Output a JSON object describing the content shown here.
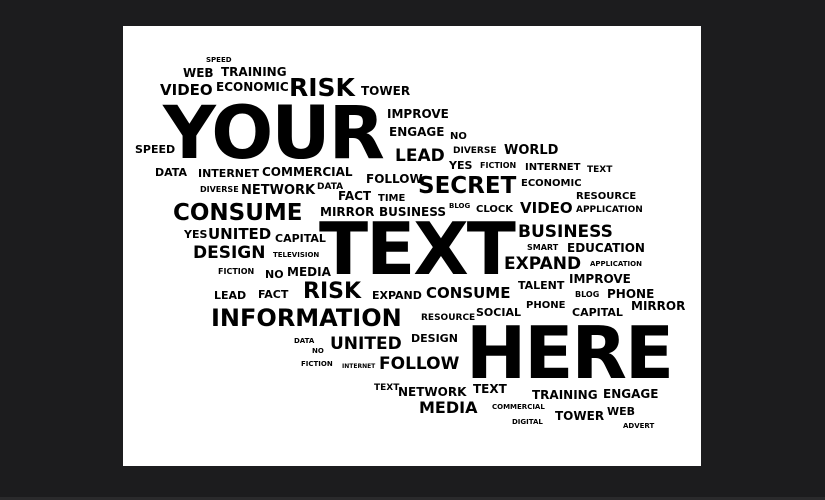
{
  "colors": {
    "background": "#1c1c1e",
    "canvas": "#ffffff",
    "text": "#000000"
  },
  "words": [
    "SPEED",
    "WEB",
    "TRAINING",
    "ECONOMIC",
    "VIDEO",
    "RISK",
    "TOWER",
    "YOUR",
    "IMPROVE",
    "ENGAGE",
    "NO",
    "SPEED",
    "LEAD",
    "DIVERSE",
    "WORLD",
    "YES",
    "FICTION",
    "INTERNET",
    "TEXT",
    "DATA",
    "INTERNET",
    "COMMERCIAL",
    "FOLLOW",
    "SECRET",
    "ECONOMIC",
    "DIVERSE",
    "NETWORK",
    "DATA",
    "FACT",
    "TIME",
    "RESOURCE",
    "BLOG",
    "CLOCK",
    "VIDEO",
    "APPLICATION",
    "CONSUME",
    "MIRROR",
    "BUSINESS",
    "TEXT",
    "BUSINESS",
    "YES",
    "UNITED",
    "CAPITAL",
    "SMART",
    "EDUCATION",
    "DESIGN",
    "TELEVISION",
    "EXPAND",
    "APPLICATION",
    "FICTION",
    "NO",
    "MEDIA",
    "IMPROVE",
    "TALENT",
    "LEAD",
    "FACT",
    "RISK",
    "EXPAND",
    "CONSUME",
    "BLOG",
    "PHONE",
    "PHONE",
    "MIRROR",
    "INFORMATION",
    "RESOURCE",
    "SOCIAL",
    "CAPITAL",
    "DATA",
    "NO",
    "UNITED",
    "DESIGN",
    "HERE",
    "FICTION",
    "INTERNET",
    "FOLLOW",
    "TEXT",
    "NETWORK",
    "TEXT",
    "TRAINING",
    "ENGAGE",
    "MEDIA",
    "COMMERCIAL",
    "TOWER",
    "WEB",
    "DIGITAL",
    "ADVERT"
  ]
}
